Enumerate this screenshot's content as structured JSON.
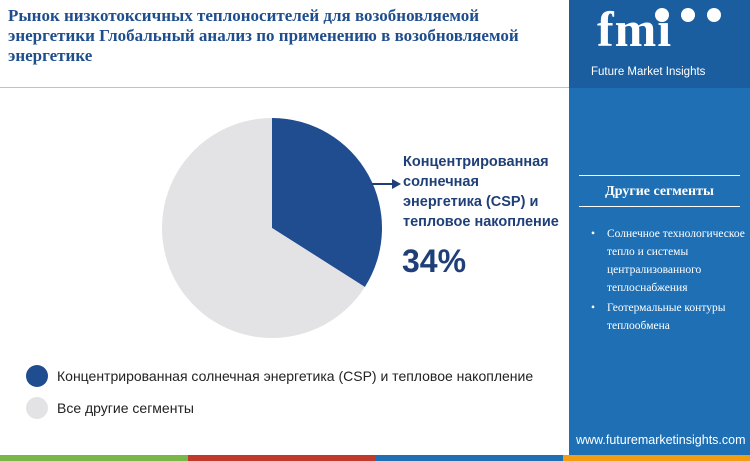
{
  "title": "Рынок низкотоксичных теплоносителей для возобновляемой энергетики Глобальный анализ по применению в возобновляемой энергетике",
  "chart_data": {
    "type": "pie",
    "slices": [
      {
        "name": "Концентрированная солнечная энергетика (CSP) и тепловое накопление",
        "value": 34,
        "color": "#1f4d8f"
      },
      {
        "name": "Все другие сегменты",
        "value": 66,
        "color": "#e3e3e5"
      }
    ],
    "callout": {
      "lines": [
        "Концентрированная",
        "солнечная",
        "энергетика (CSP) и",
        "тепловое накопление"
      ],
      "value_label": "34%"
    }
  },
  "legend": [
    {
      "label": "Концентрированная солнечная энергетика (CSP) и тепловое накопление",
      "color": "#1f4d8f"
    },
    {
      "label": "Все другие сегменты",
      "color": "#e3e3e5"
    }
  ],
  "sidebar": {
    "logo_text": "fmi",
    "logo_subtitle": "Future Market Insights",
    "heading": "Другие сегменты",
    "items": [
      "Солнечное технологическое тепло и системы централизованного теплоснабжения",
      "Геотермальные контуры теплообмена"
    ],
    "website": "www.futuremarketinsights.com",
    "bg_color": "#1f6fb4"
  },
  "bottom_bar_colors": [
    "#7ab648",
    "#c0392b",
    "#1f6fb4",
    "#f39c12"
  ]
}
